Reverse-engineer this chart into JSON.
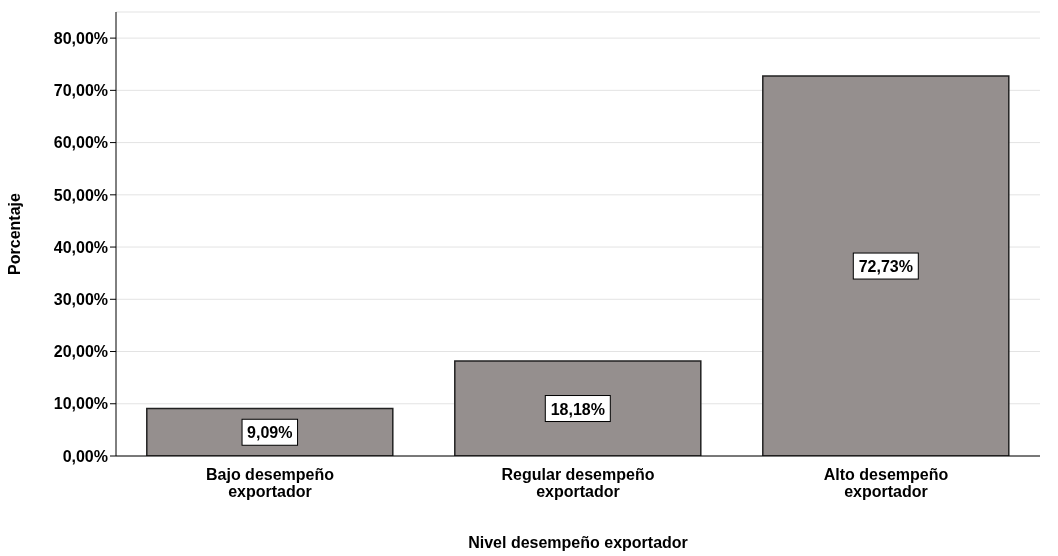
{
  "chart_data": {
    "type": "bar",
    "xlabel": "Nivel desempeño exportador",
    "ylabel": "Porcentaje",
    "categories": [
      "Bajo desempeño exportador",
      "Regular desempeño exportador",
      "Alto desempeño exportador"
    ],
    "values": [
      9.09,
      18.18,
      72.73
    ],
    "value_labels": [
      "9,09%",
      "18,18%",
      "72,73%"
    ],
    "color": "#958f8e",
    "ylim": [
      0,
      85
    ],
    "yticks": [
      {
        "value": 0,
        "label": "0,00%"
      },
      {
        "value": 10,
        "label": "10,00%"
      },
      {
        "value": 20,
        "label": "20,00%"
      },
      {
        "value": 30,
        "label": "30,00%"
      },
      {
        "value": 40,
        "label": "40,00%"
      },
      {
        "value": 50,
        "label": "50,00%"
      },
      {
        "value": 60,
        "label": "60,00%"
      },
      {
        "value": 70,
        "label": "70,00%"
      },
      {
        "value": 80,
        "label": "80,00%"
      }
    ],
    "grid": "y"
  }
}
